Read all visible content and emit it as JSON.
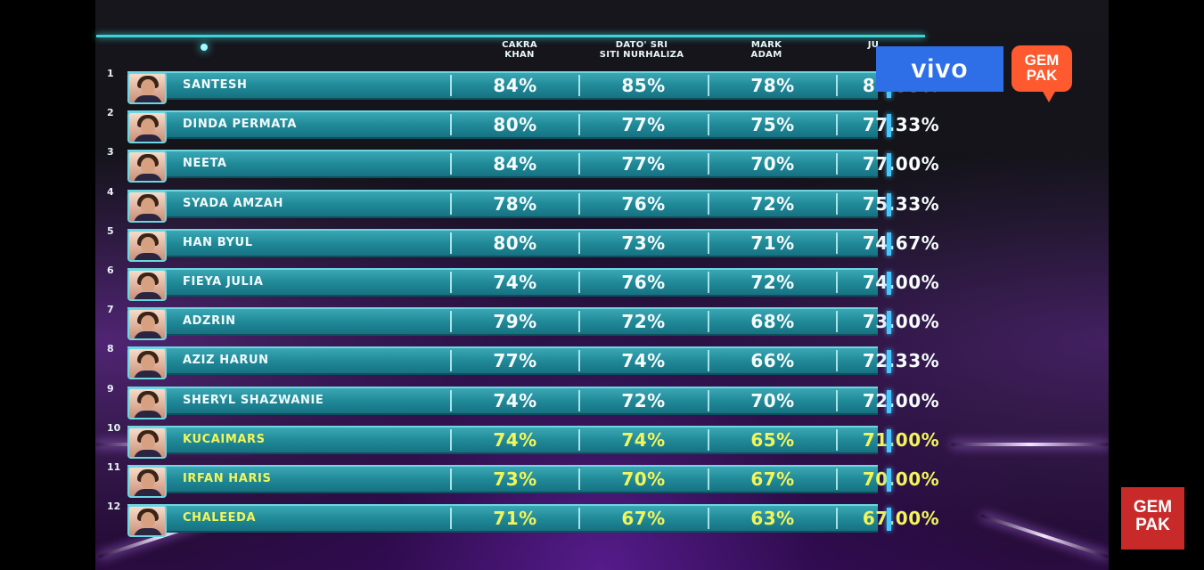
{
  "judges": [
    {
      "line1": "CAKRA",
      "line2": "KHAN"
    },
    {
      "line1": "DATO' SRI",
      "line2": "SITI NURHALIZA"
    },
    {
      "line1": "MARK",
      "line2": "ADAM"
    },
    {
      "line1": "JU",
      "line2": ""
    }
  ],
  "contestants": [
    {
      "rank": "1",
      "name": "SANTESH",
      "scores": [
        "84%",
        "85%",
        "78%",
        "82.33%"
      ],
      "highlight": false
    },
    {
      "rank": "2",
      "name": "DINDA PERMATA",
      "scores": [
        "80%",
        "77%",
        "75%",
        "77.33%"
      ],
      "highlight": false
    },
    {
      "rank": "3",
      "name": "NEETA",
      "scores": [
        "84%",
        "77%",
        "70%",
        "77.00%"
      ],
      "highlight": false
    },
    {
      "rank": "4",
      "name": "SYADA AMZAH",
      "scores": [
        "78%",
        "76%",
        "72%",
        "75.33%"
      ],
      "highlight": false
    },
    {
      "rank": "5",
      "name": "HAN BYUL",
      "scores": [
        "80%",
        "73%",
        "71%",
        "74.67%"
      ],
      "highlight": false
    },
    {
      "rank": "6",
      "name": "FIEYA JULIA",
      "scores": [
        "74%",
        "76%",
        "72%",
        "74.00%"
      ],
      "highlight": false
    },
    {
      "rank": "7",
      "name": "ADZRIN",
      "scores": [
        "79%",
        "72%",
        "68%",
        "73.00%"
      ],
      "highlight": false
    },
    {
      "rank": "8",
      "name": "AZIZ HARUN",
      "scores": [
        "77%",
        "74%",
        "66%",
        "72.33%"
      ],
      "highlight": false
    },
    {
      "rank": "9",
      "name": "SHERYL SHAZWANIE",
      "scores": [
        "74%",
        "72%",
        "70%",
        "72.00%"
      ],
      "highlight": false
    },
    {
      "rank": "10",
      "name": "KUCAIMARS",
      "scores": [
        "74%",
        "74%",
        "65%",
        "71.00%"
      ],
      "highlight": true
    },
    {
      "rank": "11",
      "name": "IRFAN HARIS",
      "scores": [
        "73%",
        "70%",
        "67%",
        "70.00%"
      ],
      "highlight": true
    },
    {
      "rank": "12",
      "name": "CHALEEDA",
      "scores": [
        "71%",
        "67%",
        "63%",
        "67.00%"
      ],
      "highlight": true
    }
  ],
  "logos": {
    "vivo": "vivo",
    "gempak_top_line1": "GEM",
    "gempak_top_line2": "PAK",
    "gempak_corner_line1": "GEM",
    "gempak_corner_line2": "PAK"
  },
  "colors": {
    "row": "#1f8796",
    "highlight_text": "#f2f55a",
    "vivo_blue": "#2e6fe8",
    "gempak_orange": "#ff5a2f"
  }
}
